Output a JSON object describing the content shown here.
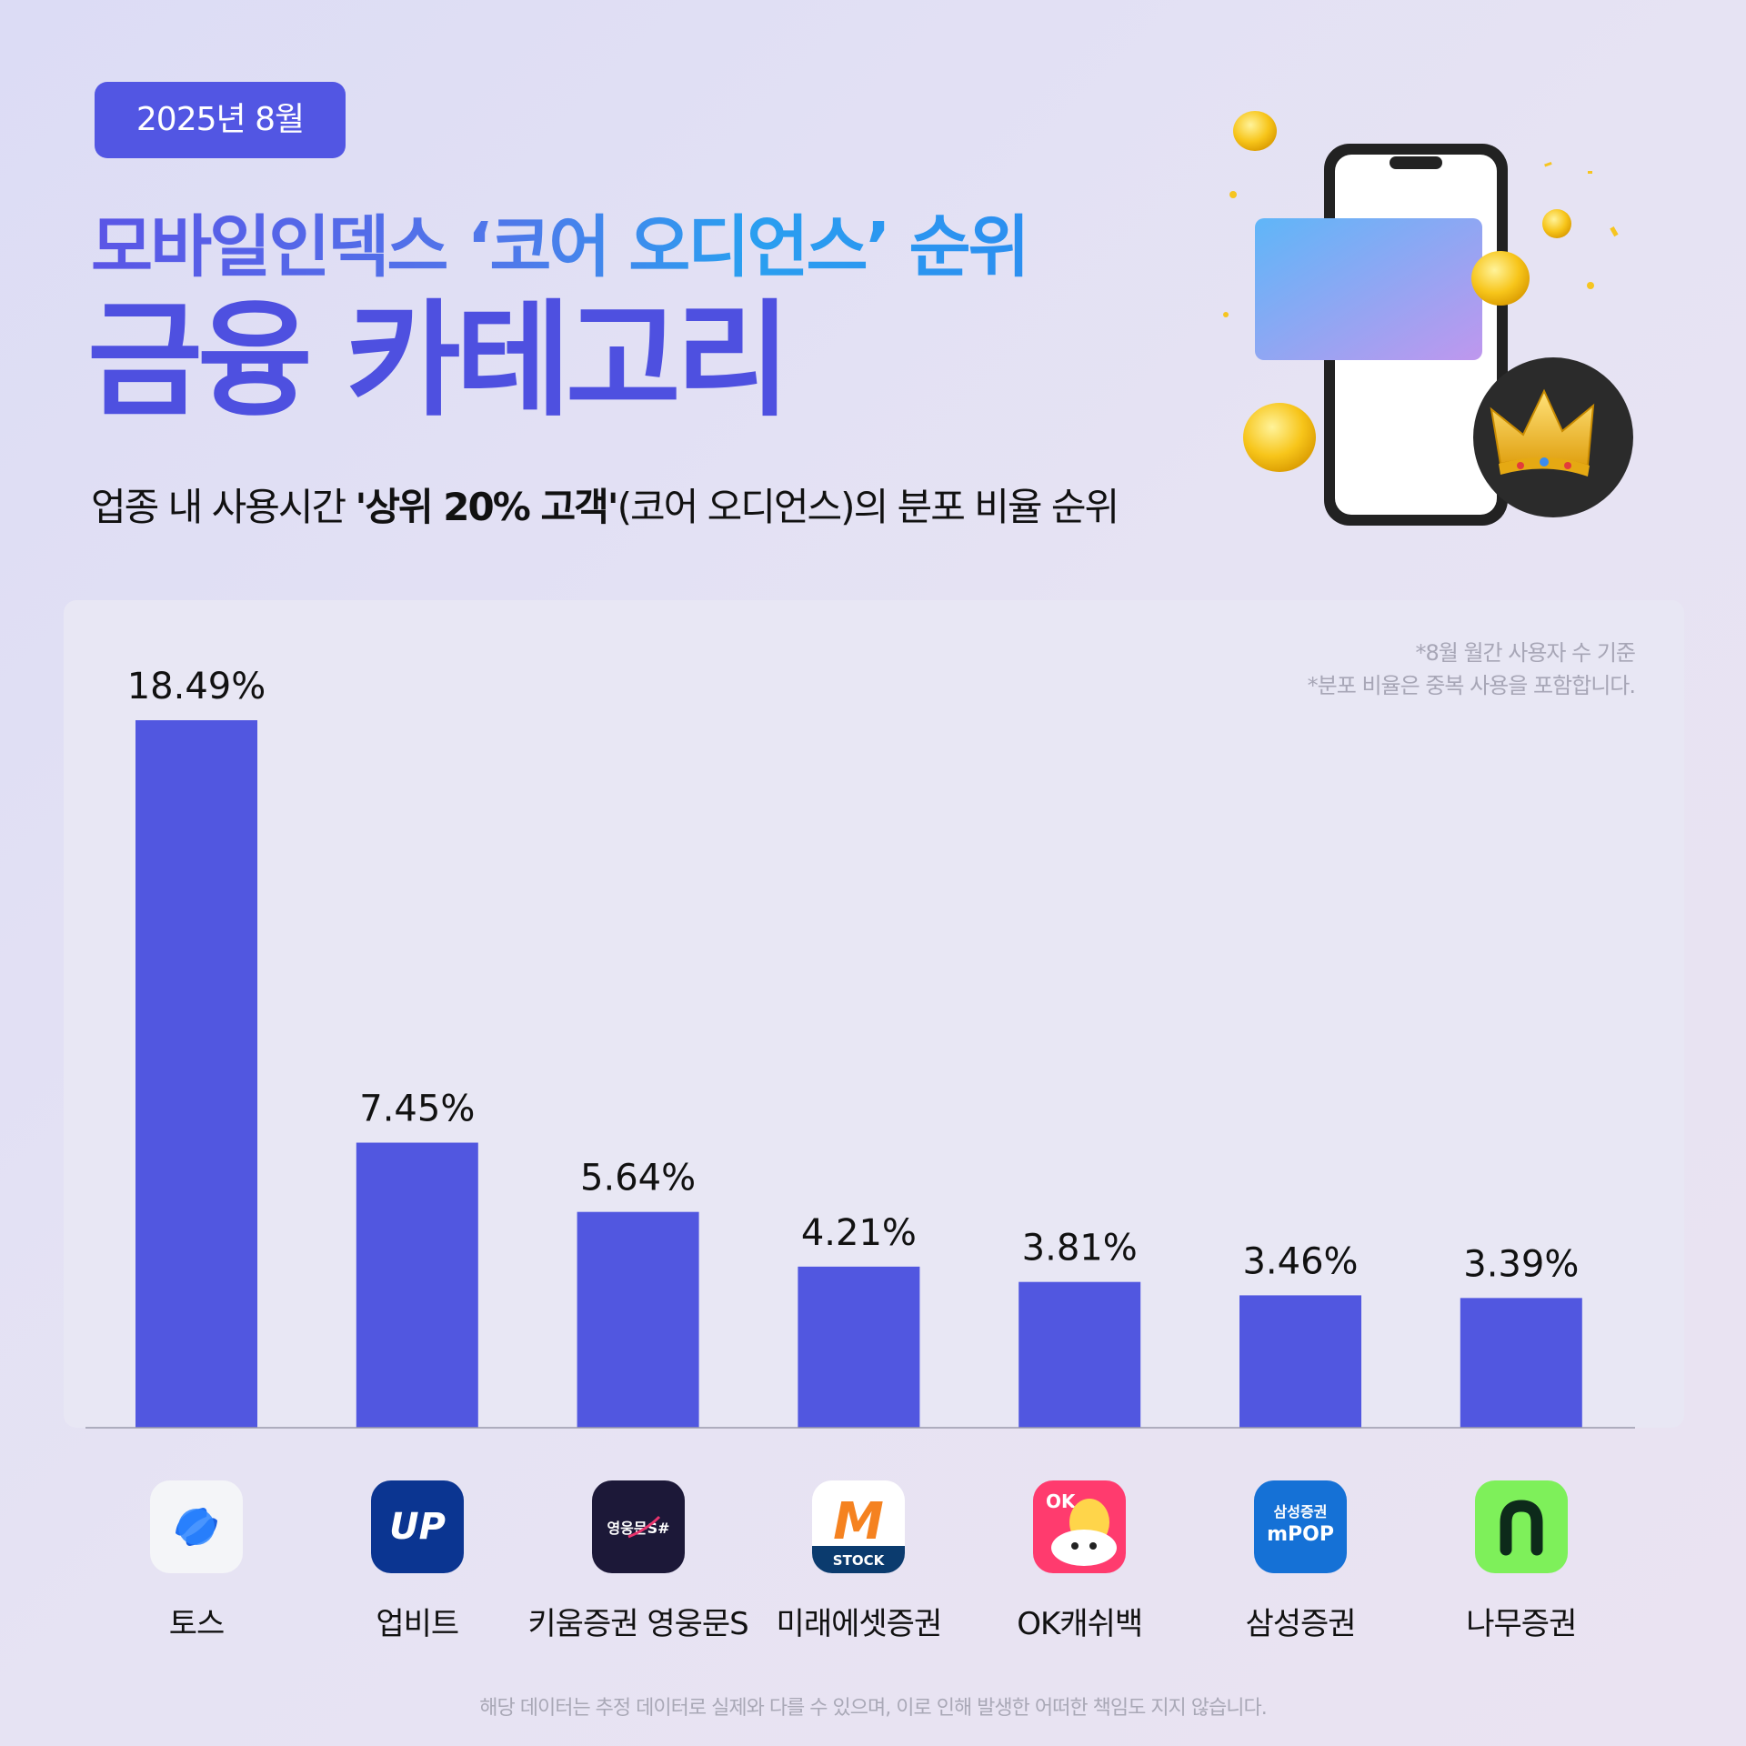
{
  "header": {
    "badge": "2025년 8월",
    "title_line1": "모바일인덱스 ‘코어 오디언스’ 순위",
    "title_line2": "금융 카테고리",
    "subtitle_pre": "업종 내 사용시간 ",
    "subtitle_bold": "'상위 20% 고객'",
    "subtitle_post": "(코어 오디언스)의 분포 비율 순위"
  },
  "notes": {
    "line1": "*8월 월간 사용자 수 기준",
    "line2": "*분포 비율은 중복 사용을 포함합니다."
  },
  "chart_data": {
    "type": "bar",
    "categories": [
      "토스",
      "업비트",
      "키움증권 영웅문S",
      "미래에셋증권",
      "OK캐쉬백",
      "삼성증권",
      "나무증권"
    ],
    "values": [
      18.49,
      7.45,
      5.64,
      4.21,
      3.81,
      3.46,
      3.39
    ],
    "value_labels": [
      "18.49%",
      "7.45%",
      "5.64%",
      "4.21%",
      "3.81%",
      "3.46%",
      "3.39%"
    ],
    "unit": "%",
    "bar_color": "#5157e0",
    "grid": false,
    "legend": "none"
  },
  "icons": [
    {
      "name": "toss-app-icon",
      "text": ""
    },
    {
      "name": "upbit-app-icon",
      "text": "UP"
    },
    {
      "name": "kiwoom-app-icon",
      "text": "영웅문S#"
    },
    {
      "name": "mirae-asset-app-icon",
      "text": "M",
      "subtext": "STOCK"
    },
    {
      "name": "okcashbag-app-icon",
      "text": "OK"
    },
    {
      "name": "samsung-mpop-app-icon",
      "text": "삼성증권",
      "subtext": "mPOP"
    },
    {
      "name": "namuh-app-icon",
      "text": "n"
    }
  ],
  "footer": "해당 데이터는 추정 데이터로 실제와 다를 수 있으며, 이로 인해 발생한 어떠한 책임도 지지 않습니다."
}
